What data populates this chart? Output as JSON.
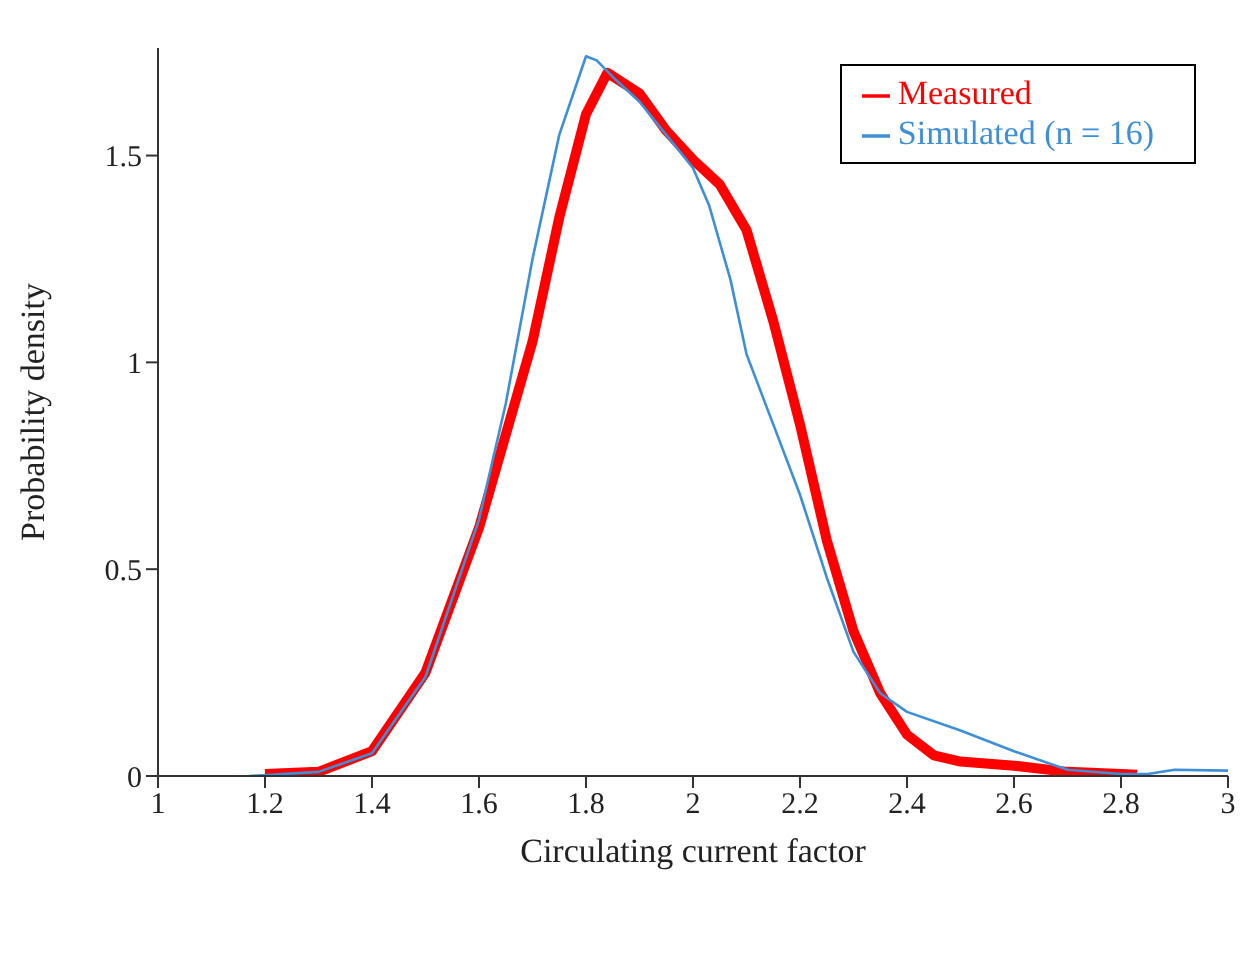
{
  "chart_data": {
    "type": "line",
    "xlabel": "Circulating current factor",
    "ylabel": "Probability density",
    "xlim": [
      1,
      3
    ],
    "xticks": [
      1,
      1.2,
      1.4,
      1.6,
      1.8,
      2,
      2.2,
      2.4,
      2.6,
      2.8,
      3
    ],
    "ylim": [
      0,
      1.76
    ],
    "yticks": [
      0,
      0.5,
      1,
      1.5
    ],
    "grid": false,
    "legend": "top right",
    "marker": "none",
    "line_style": "solid",
    "series": [
      {
        "name": "Measured",
        "color": "#ff0000",
        "x": [
          1.2,
          1.3,
          1.4,
          1.5,
          1.6,
          1.7,
          1.75,
          1.8,
          1.84,
          1.9,
          1.95,
          2.0,
          2.05,
          2.1,
          2.15,
          2.2,
          2.25,
          2.3,
          2.35,
          2.4,
          2.45,
          2.5,
          2.6,
          2.7,
          2.8,
          2.83
        ],
        "values": [
          0.005,
          0.01,
          0.06,
          0.25,
          0.6,
          1.05,
          1.35,
          1.6,
          1.7,
          1.65,
          1.56,
          1.49,
          1.43,
          1.32,
          1.1,
          0.85,
          0.57,
          0.35,
          0.2,
          0.1,
          0.05,
          0.035,
          0.025,
          0.01,
          0.005,
          0.003
        ]
      },
      {
        "name": "Simulated (n = 16)",
        "color": "#3d8fd6",
        "x": [
          1.17,
          1.3,
          1.4,
          1.5,
          1.6,
          1.65,
          1.7,
          1.75,
          1.8,
          1.82,
          1.85,
          1.9,
          1.95,
          2.0,
          2.03,
          2.07,
          2.1,
          2.15,
          2.2,
          2.25,
          2.3,
          2.35,
          2.4,
          2.5,
          2.6,
          2.7,
          2.8,
          2.85,
          2.9,
          3.0
        ],
        "values": [
          0,
          0.01,
          0.055,
          0.24,
          0.62,
          0.9,
          1.25,
          1.55,
          1.74,
          1.73,
          1.69,
          1.63,
          1.55,
          1.47,
          1.38,
          1.2,
          1.02,
          0.85,
          0.68,
          0.48,
          0.3,
          0.2,
          0.155,
          0.11,
          0.06,
          0.015,
          0.005,
          0.005,
          0.015,
          0.013
        ]
      }
    ]
  }
}
